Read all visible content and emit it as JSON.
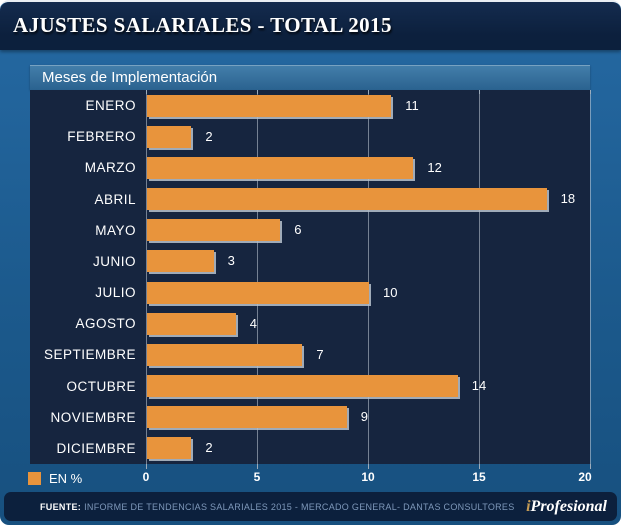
{
  "header": {
    "title": "AJUSTES SALARIALES - TOTAL 2015"
  },
  "panel": {
    "header": "Meses de Implementación"
  },
  "legend": {
    "label": "EN %",
    "swatch_color": "#E8943C"
  },
  "chart_data": {
    "type": "bar",
    "orientation": "horizontal",
    "title": "AJUSTES SALARIALES - TOTAL 2015",
    "subtitle": "Meses de Implementación",
    "unit_legend": "EN %",
    "categories": [
      "ENERO",
      "FEBRERO",
      "MARZO",
      "ABRIL",
      "MAYO",
      "JUNIO",
      "JULIO",
      "AGOSTO",
      "SEPTIEMBRE",
      "OCTUBRE",
      "NOVIEMBRE",
      "DICIEMBRE"
    ],
    "values": [
      11,
      2,
      12,
      18,
      6,
      3,
      10,
      4,
      7,
      14,
      9,
      2
    ],
    "xlabel": "",
    "ylabel": "",
    "xlim": [
      0,
      20
    ],
    "xticks": [
      0,
      5,
      10,
      15,
      20
    ],
    "grid": true,
    "bar_color": "#E8943C",
    "legend_position": "bottom-left"
  },
  "footer": {
    "source_label": "FUENTE:",
    "source_text": "INFORME DE TENDENCIAS SALARIALES 2015 - MERCADO GENERAL- DANTAS CONSULTORES",
    "brand_i": "i",
    "brand_rest": "Profesional"
  },
  "colors": {
    "bar": "#E8943C",
    "titlebar_bg": "#0C203D",
    "body_bg": "#1C5A8D",
    "chart_bg": "#16253F",
    "gridline": "#C4CED9"
  }
}
